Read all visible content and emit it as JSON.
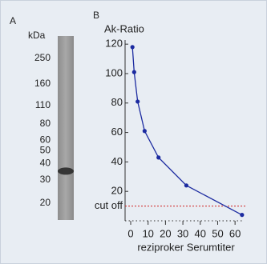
{
  "chart_data": [
    {
      "type": "blot",
      "panel_label": "A",
      "axis_label": "kDa",
      "log_scale": true,
      "ylim": [
        20,
        250
      ],
      "yticks": [
        250,
        160,
        110,
        80,
        60,
        50,
        40,
        30,
        20
      ],
      "values": [
        35
      ],
      "color": "#2a2a2a"
    },
    {
      "type": "line",
      "panel_label": "B",
      "title": "Ak-Ratio",
      "x_label": "reziproker Serumtiter",
      "x": [
        1,
        2,
        4,
        8,
        16,
        32,
        64
      ],
      "values": [
        118,
        101,
        81,
        61,
        43,
        24,
        4
      ],
      "color": "#1c2ba0",
      "xlim": [
        0,
        65
      ],
      "xticks": [
        0,
        10,
        20,
        30,
        40,
        50,
        60
      ],
      "ylim": [
        0,
        122
      ],
      "yticks": [
        20,
        40,
        60,
        80,
        100,
        120
      ],
      "cutoff": {
        "value": 10,
        "label": "cut off",
        "color": "#d02020"
      }
    }
  ]
}
